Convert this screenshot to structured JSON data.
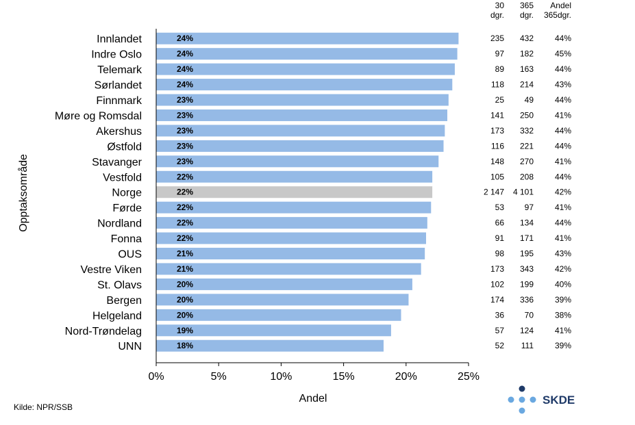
{
  "chart_data": {
    "type": "bar",
    "orientation": "horizontal",
    "categories": [
      "Innlandet",
      "Indre Oslo",
      "Telemark",
      "Sørlandet",
      "Finnmark",
      "Møre og Romsdal",
      "Akershus",
      "Østfold",
      "Stavanger",
      "Vestfold",
      "Norge",
      "Førde",
      "Nordland",
      "Fonna",
      "OUS",
      "Vestre Viken",
      "St. Olavs",
      "Bergen",
      "Helgeland",
      "Nord-Trøndelag",
      "UNN"
    ],
    "values": [
      24.2,
      24.1,
      23.9,
      23.7,
      23.4,
      23.3,
      23.1,
      23.0,
      22.6,
      22.1,
      22.1,
      22.0,
      21.7,
      21.6,
      21.5,
      21.2,
      20.5,
      20.2,
      19.6,
      18.8,
      18.2
    ],
    "bar_labels": [
      "24%",
      "24%",
      "24%",
      "24%",
      "23%",
      "23%",
      "23%",
      "23%",
      "23%",
      "22%",
      "22%",
      "22%",
      "22%",
      "22%",
      "21%",
      "21%",
      "20%",
      "20%",
      "20%",
      "19%",
      "18%"
    ],
    "highlight_category": "Norge",
    "xlabel": "Andel",
    "ylabel": "Opptaksområde",
    "xlim": [
      0,
      25
    ],
    "x_ticks": [
      "0%",
      "5%",
      "10%",
      "15%",
      "20%",
      "25%"
    ],
    "colors": {
      "bar": "#95bae6",
      "highlight": "#c8c8c8",
      "axis": "#000000"
    },
    "table": {
      "headers": [
        [
          "30",
          "dgr."
        ],
        [
          "365",
          "dgr."
        ],
        [
          "Andel",
          "365dgr."
        ]
      ],
      "rows": [
        [
          "235",
          "432",
          "44%"
        ],
        [
          "97",
          "182",
          "45%"
        ],
        [
          "89",
          "163",
          "44%"
        ],
        [
          "118",
          "214",
          "43%"
        ],
        [
          "25",
          "49",
          "44%"
        ],
        [
          "141",
          "250",
          "41%"
        ],
        [
          "173",
          "332",
          "44%"
        ],
        [
          "116",
          "221",
          "44%"
        ],
        [
          "148",
          "270",
          "41%"
        ],
        [
          "105",
          "208",
          "44%"
        ],
        [
          "2 147",
          "4 101",
          "42%"
        ],
        [
          "53",
          "97",
          "41%"
        ],
        [
          "66",
          "134",
          "44%"
        ],
        [
          "91",
          "171",
          "41%"
        ],
        [
          "98",
          "195",
          "43%"
        ],
        [
          "173",
          "343",
          "42%"
        ],
        [
          "102",
          "199",
          "40%"
        ],
        [
          "174",
          "336",
          "39%"
        ],
        [
          "36",
          "70",
          "38%"
        ],
        [
          "57",
          "124",
          "41%"
        ],
        [
          "52",
          "111",
          "39%"
        ]
      ]
    }
  },
  "footer": {
    "source": "Kilde: NPR/SSB"
  },
  "logo": {
    "text": "SKDE",
    "dot_colors": {
      "top": "#1f3a68",
      "others": "#6aa8e0"
    }
  }
}
